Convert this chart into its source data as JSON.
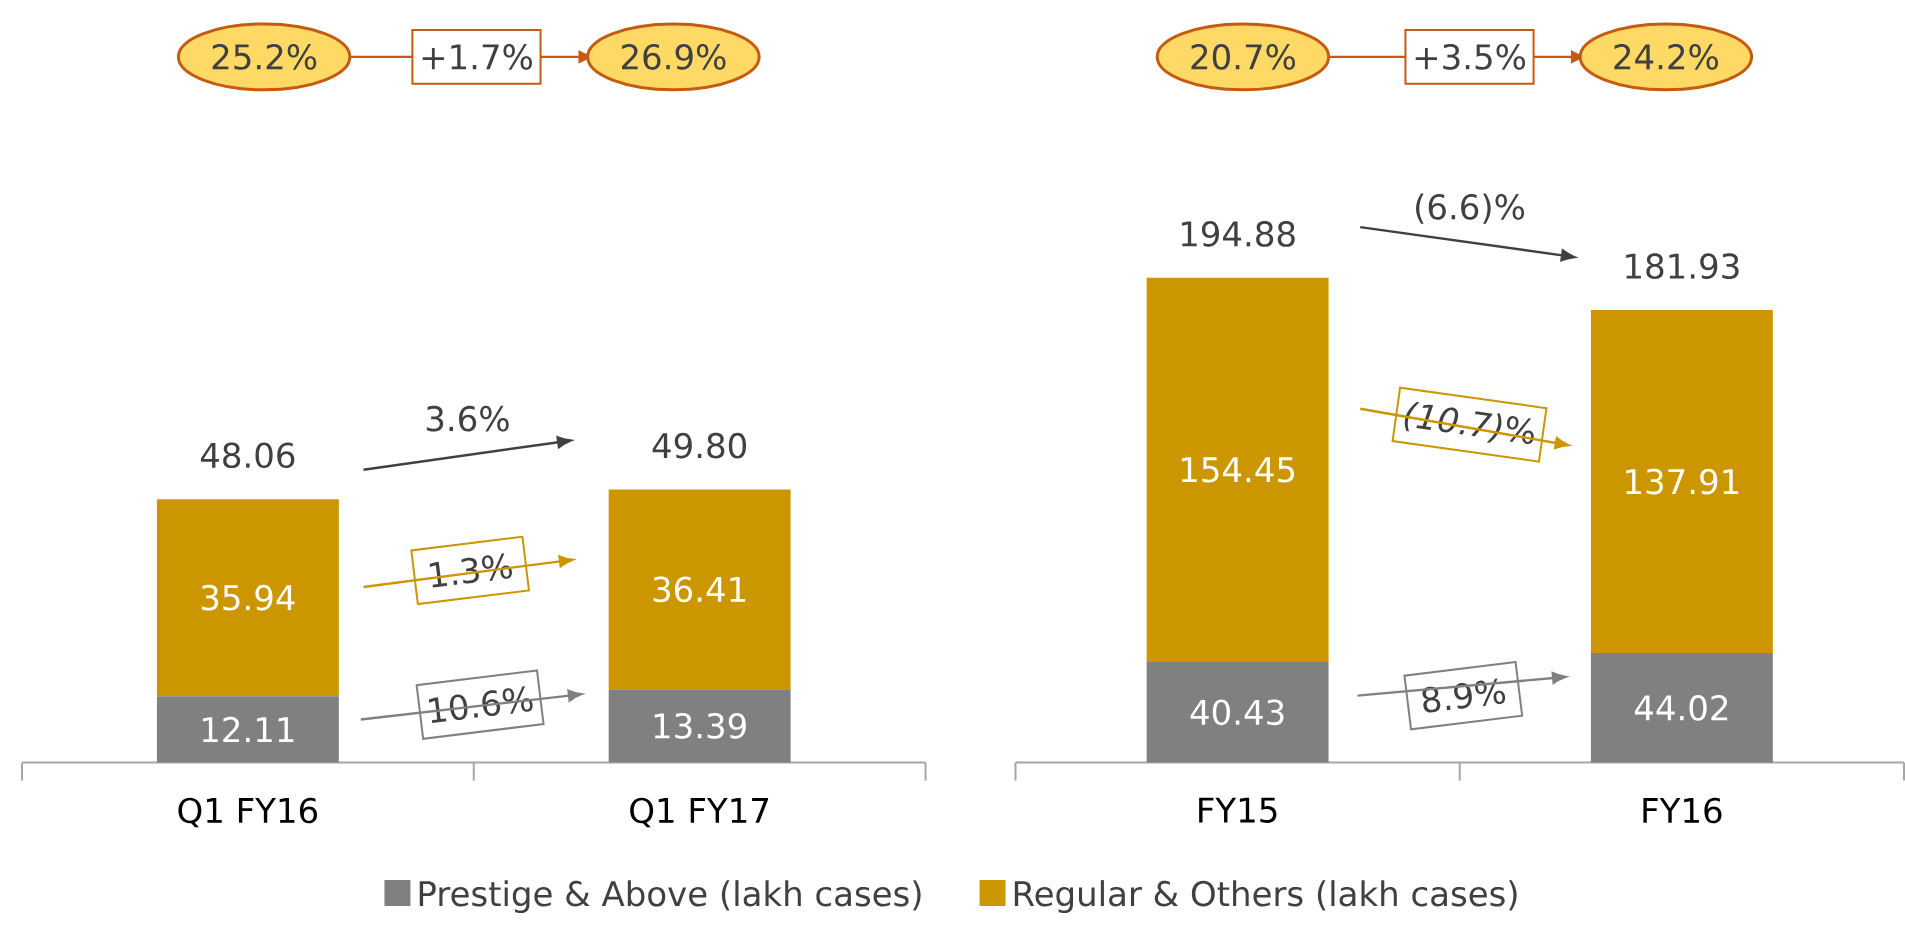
{
  "chart_data": [
    {
      "type": "bar",
      "stacked": true,
      "categories": [
        "Q1 FY16",
        "Q1 FY17"
      ],
      "series": [
        {
          "name": "Prestige & Above (lakh cases)",
          "color": "#808080",
          "values": [
            12.11,
            13.39
          ]
        },
        {
          "name": "Regular & Others (lakh cases)",
          "color": "#cc9600",
          "values": [
            35.94,
            36.41
          ]
        }
      ],
      "data_labels": true,
      "totals": [
        "48.06",
        "49.80"
      ],
      "annotations": [
        "25.2%",
        "+1.7%",
        "26.9%",
        "3.6%",
        "1.3%",
        "10.6%"
      ],
      "legend": "bottom"
    },
    {
      "type": "bar",
      "stacked": true,
      "categories": [
        "FY15",
        "FY16"
      ],
      "series": [
        {
          "color": "#808080",
          "values": [
            40.43,
            44.02
          ]
        },
        {
          "color": "#cc9600",
          "values": [
            154.45,
            137.91
          ]
        }
      ],
      "data_labels": true,
      "totals": [
        "194.88",
        "181.93"
      ],
      "annotations": [
        "20.7%",
        "+3.5%",
        "24.2%",
        "(6.6)%",
        "*(10.7)*%",
        "8.9%"
      ]
    }
  ]
}
